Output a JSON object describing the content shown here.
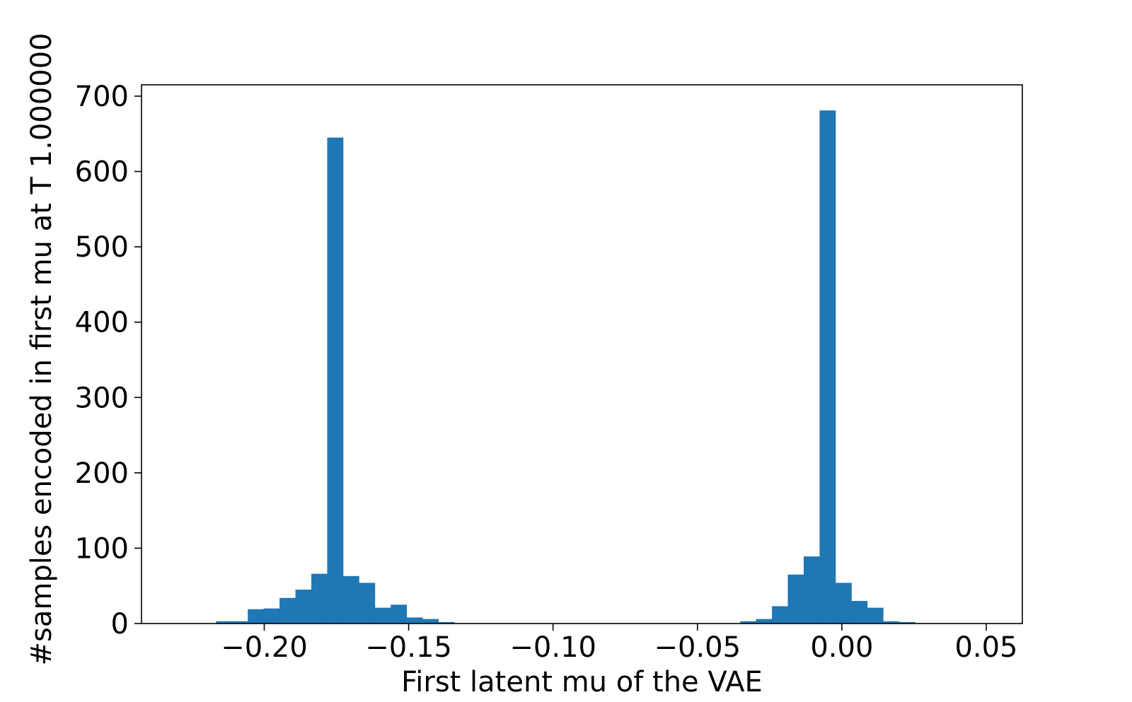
{
  "chart_data": {
    "type": "bar",
    "title": "",
    "xlabel": "First latent mu of the VAE",
    "ylabel": "#samples encoded in first mu at T 1.000000",
    "xlim": [
      -0.2425,
      0.0625
    ],
    "ylim": [
      0,
      715
    ],
    "xticks": [
      -0.2,
      -0.15,
      -0.1,
      -0.05,
      0.0,
      0.05
    ],
    "xtick_labels": [
      "−0.20",
      "−0.15",
      "−0.10",
      "−0.05",
      "0.00",
      "0.05"
    ],
    "yticks": [
      0,
      100,
      200,
      300,
      400,
      500,
      600,
      700
    ],
    "ytick_labels": [
      "0",
      "100",
      "200",
      "300",
      "400",
      "500",
      "600",
      "700"
    ],
    "bin_start": -0.2167,
    "bin_width": 0.0055,
    "values": [
      3,
      3,
      19,
      20,
      34,
      45,
      66,
      645,
      63,
      54,
      21,
      25,
      8,
      6,
      2,
      0,
      0,
      0,
      0,
      0,
      0,
      0,
      0,
      0,
      0,
      0,
      0,
      0,
      0,
      0,
      0,
      0,
      0,
      3,
      6,
      23,
      65,
      89,
      681,
      54,
      30,
      21,
      3,
      2
    ],
    "bar_color": "#1f77b4",
    "grid": false,
    "legend": "none"
  }
}
